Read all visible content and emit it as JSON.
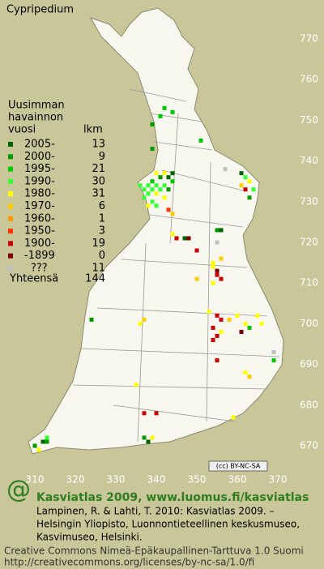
{
  "title": "Cypripedium",
  "yticks": [
    770,
    760,
    750,
    740,
    730,
    720,
    710,
    700,
    690,
    680,
    670
  ],
  "xticks": [
    310,
    320,
    330,
    340,
    350,
    360,
    370
  ],
  "xlim": [
    310,
    370
  ],
  "ylim": [
    670,
    770
  ],
  "legend": {
    "heading": [
      "Uusimman",
      "havainnon",
      "vuosi"
    ],
    "count_heading": "lkm",
    "items": [
      {
        "label": "2005-",
        "count": 13,
        "color": "#006400"
      },
      {
        "label": "2000-",
        "count": 9,
        "color": "#009a00"
      },
      {
        "label": "1995-",
        "count": 21,
        "color": "#00c800"
      },
      {
        "label": "1990-",
        "count": 30,
        "color": "#33ff33"
      },
      {
        "label": "1980-",
        "count": 31,
        "color": "#ffff00"
      },
      {
        "label": "1970-",
        "count": 6,
        "color": "#ffcc00"
      },
      {
        "label": "1960-",
        "count": 1,
        "color": "#ff9900"
      },
      {
        "label": "1950-",
        "count": 3,
        "color": "#ff3300"
      },
      {
        "label": "1900-",
        "count": 19,
        "color": "#cc0000"
      },
      {
        "label": "-1899",
        "count": 0,
        "color": "#800000"
      },
      {
        "label": "???",
        "count": 11,
        "color": "#c0c0c0"
      }
    ],
    "total_label": "Yhteensä",
    "total": 144
  },
  "squares": [
    [
      337,
      733,
      3
    ],
    [
      338,
      734,
      3
    ],
    [
      338,
      732,
      3
    ],
    [
      339,
      733,
      3
    ],
    [
      339,
      735,
      2
    ],
    [
      340,
      734,
      3
    ],
    [
      340,
      732,
      4
    ],
    [
      341,
      733,
      3
    ],
    [
      341,
      736,
      1
    ],
    [
      342,
      734,
      3
    ],
    [
      342,
      731,
      4
    ],
    [
      343,
      733,
      1
    ],
    [
      343,
      736,
      0
    ],
    [
      344,
      735,
      2
    ],
    [
      337,
      731,
      3
    ],
    [
      336,
      734,
      3
    ],
    [
      340,
      737,
      4
    ],
    [
      342,
      737,
      4
    ],
    [
      344,
      737,
      0
    ],
    [
      339,
      730,
      3
    ],
    [
      338,
      729,
      4
    ],
    [
      340,
      729,
      3
    ],
    [
      342,
      753,
      2
    ],
    [
      341,
      751,
      2
    ],
    [
      339,
      749,
      1
    ],
    [
      344,
      752,
      2
    ],
    [
      339,
      743,
      1
    ],
    [
      351,
      745,
      2
    ],
    [
      361,
      737,
      0
    ],
    [
      362,
      736,
      3
    ],
    [
      363,
      735,
      4
    ],
    [
      361,
      734,
      5
    ],
    [
      362,
      733,
      8
    ],
    [
      364,
      733,
      3
    ],
    [
      363,
      731,
      1
    ],
    [
      357,
      738,
      10
    ],
    [
      343,
      728,
      7
    ],
    [
      344,
      727,
      5
    ],
    [
      344,
      722,
      4
    ],
    [
      345,
      721,
      8
    ],
    [
      347,
      721,
      0
    ],
    [
      348,
      721,
      9
    ],
    [
      355,
      723,
      1
    ],
    [
      356,
      723,
      0
    ],
    [
      350,
      718,
      8
    ],
    [
      355,
      720,
      10
    ],
    [
      354,
      715,
      4
    ],
    [
      354,
      714,
      4
    ],
    [
      355,
      713,
      9
    ],
    [
      355,
      712,
      8
    ],
    [
      356,
      711,
      8
    ],
    [
      354,
      710,
      4
    ],
    [
      356,
      716,
      5
    ],
    [
      350,
      711,
      5
    ],
    [
      324,
      701,
      1
    ],
    [
      336,
      700,
      4
    ],
    [
      337,
      701,
      5
    ],
    [
      353,
      703,
      4
    ],
    [
      355,
      702,
      8
    ],
    [
      356,
      701,
      8
    ],
    [
      354,
      699,
      8
    ],
    [
      355,
      697,
      8
    ],
    [
      354,
      696,
      8
    ],
    [
      356,
      698,
      4
    ],
    [
      358,
      701,
      5
    ],
    [
      360,
      702,
      4
    ],
    [
      362,
      700,
      4
    ],
    [
      363,
      699,
      2
    ],
    [
      365,
      702,
      4
    ],
    [
      366,
      700,
      4
    ],
    [
      361,
      698,
      9
    ],
    [
      355,
      691,
      8
    ],
    [
      362,
      688,
      4
    ],
    [
      363,
      687,
      5
    ],
    [
      369,
      693,
      10
    ],
    [
      369,
      691,
      2
    ],
    [
      335,
      685,
      4
    ],
    [
      337,
      678,
      8
    ],
    [
      340,
      678,
      8
    ],
    [
      359,
      677,
      4
    ],
    [
      337,
      672,
      1
    ],
    [
      339,
      672,
      4
    ],
    [
      338,
      671,
      0
    ],
    [
      310,
      670,
      1
    ],
    [
      311,
      669,
      4
    ],
    [
      312,
      671,
      0
    ],
    [
      313,
      672,
      3
    ],
    [
      313,
      671,
      1
    ]
  ],
  "badge": "(cc) BY-NC-SA",
  "footer": {
    "heading": "Kasviatlas 2009, www.luomus.fi/kasviatlas",
    "citation": [
      "Lampinen, R. & Lahti, T. 2010: Kasviatlas 2009. –",
      "Helsingin Yliopisto, Luonnontieteellinen keskusmuseo,",
      "Kasvimuseo, Helsinki."
    ],
    "license": [
      "Creative Commons Nimeä-Epäkaupallinen-Tarttuva 1.0 Suomi",
      "http://creativecommons.org/licenses/by-nc-sa/1.0/fi"
    ]
  }
}
